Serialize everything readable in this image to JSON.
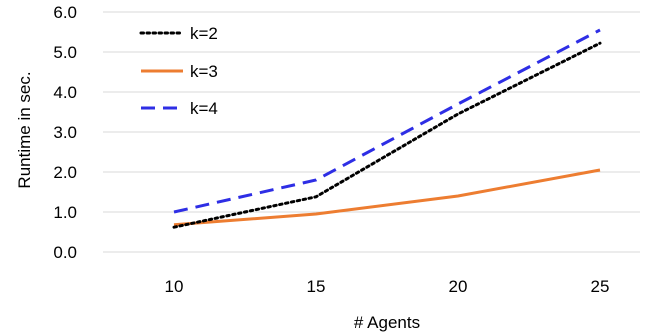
{
  "chart_data": {
    "type": "line",
    "title": "",
    "xlabel": "# Agents",
    "ylabel": "Runtime in sec.",
    "x": [
      10,
      15,
      20,
      25
    ],
    "x_tick_labels": [
      "10",
      "15",
      "20",
      "25"
    ],
    "y_tick_labels": [
      "0.0",
      "1.0",
      "2.0",
      "3.0",
      "4.0",
      "5.0",
      "6.0"
    ],
    "ylim": [
      0,
      6
    ],
    "grid": "horizontal",
    "legend_position": "top-left",
    "series": [
      {
        "name": "k=2",
        "values": [
          0.62,
          1.38,
          3.45,
          5.22
        ],
        "color": "#000000",
        "style": "dotted"
      },
      {
        "name": "k=3",
        "values": [
          0.68,
          0.95,
          1.4,
          2.05
        ],
        "color": "#ED7D31",
        "style": "solid"
      },
      {
        "name": "k=4",
        "values": [
          1.0,
          1.8,
          3.7,
          5.55
        ],
        "color": "#2E2EE5",
        "style": "dashed"
      }
    ]
  }
}
